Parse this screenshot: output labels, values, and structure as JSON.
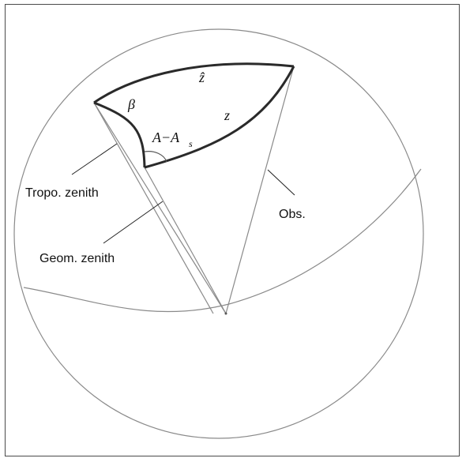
{
  "labels": {
    "tropo": "Tropo. zenith",
    "geom": "Geom. zenith",
    "obs": "Obs.",
    "z": "z",
    "zhat": "ẑ",
    "beta": "β",
    "angle_main": "A−A",
    "angle_sub": "s"
  },
  "colors": {
    "thin_line": "#8a8a8a",
    "thick_line": "#2a2a2a",
    "frame": "#4a4a4a"
  }
}
